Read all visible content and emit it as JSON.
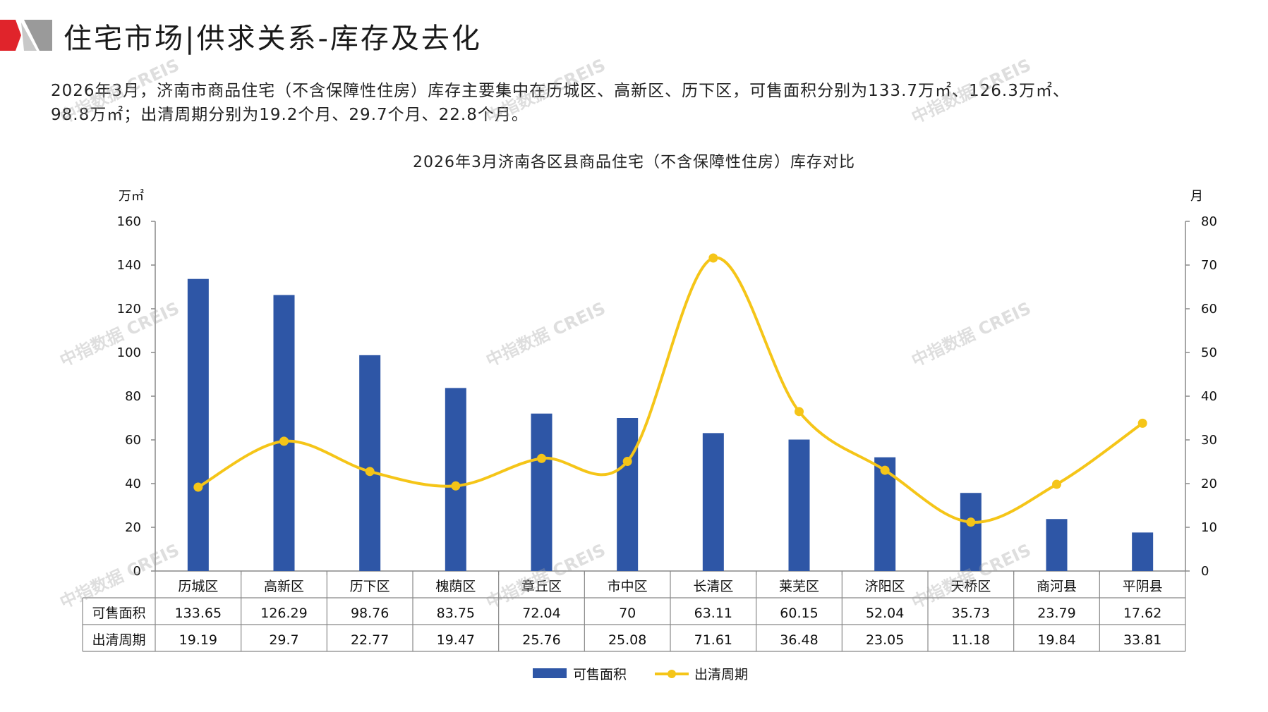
{
  "header": {
    "title": "住宅市场|供求关系-库存及去化"
  },
  "summary": {
    "line1": "2026年3月，济南市商品住宅（不含保障性住房）库存主要集中在历城区、高新区、历下区，可售面积分别为133.7万㎡、126.3万㎡、",
    "line2": "98.8万㎡；出清周期分别为19.2个月、29.7个月、22.8个月。"
  },
  "watermark_text": "中指数据 CREIS",
  "colors": {
    "bar": "#2E56A6",
    "line": "#F5C518",
    "logo_red": "#E0242B",
    "logo_gray": "#9A9A9A"
  },
  "chart_data": {
    "type": "bar",
    "title": "2026年3月济南各区县商品住宅（不含保障性住房）库存对比",
    "categories": [
      "历城区",
      "高新区",
      "历下区",
      "槐荫区",
      "章丘区",
      "市中区",
      "长清区",
      "莱芜区",
      "济阳区",
      "天桥区",
      "商河县",
      "平阴县"
    ],
    "series": [
      {
        "name": "可售面积",
        "type": "bar",
        "axis": "left",
        "values": [
          133.65,
          126.29,
          98.76,
          83.75,
          72.04,
          70,
          63.11,
          60.15,
          52.04,
          35.73,
          23.79,
          17.62
        ],
        "labels": [
          "133.65",
          "126.29",
          "98.76",
          "83.75",
          "72.04",
          "70",
          "63.11",
          "60.15",
          "52.04",
          "35.73",
          "23.79",
          "17.62"
        ]
      },
      {
        "name": "出清周期",
        "type": "line",
        "smooth": true,
        "axis": "right",
        "values": [
          19.19,
          29.7,
          22.77,
          19.47,
          25.76,
          25.08,
          71.61,
          36.48,
          23.05,
          11.18,
          19.84,
          33.81
        ],
        "labels": [
          "19.19",
          "29.7",
          "22.77",
          "19.47",
          "25.76",
          "25.08",
          "71.61",
          "36.48",
          "23.05",
          "11.18",
          "19.84",
          "33.81"
        ]
      }
    ],
    "left_axis": {
      "unit": "万㎡",
      "ylim": [
        0,
        160
      ],
      "ticks": [
        "0",
        "20",
        "40",
        "60",
        "80",
        "100",
        "120",
        "140",
        "160"
      ]
    },
    "right_axis": {
      "unit": "月",
      "ylim": [
        0,
        80
      ],
      "ticks": [
        "0",
        "10",
        "20",
        "30",
        "40",
        "50",
        "60",
        "70",
        "80"
      ]
    },
    "data_table": true,
    "grid": false,
    "legend_position": "bottom"
  }
}
